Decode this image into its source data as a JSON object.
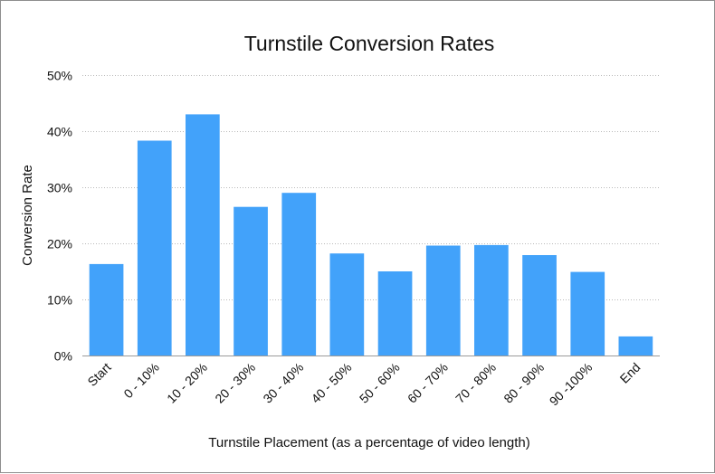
{
  "chart_data": {
    "type": "bar",
    "title": "Turnstile Conversion Rates",
    "xlabel": "Turnstile Placement (as a percentage of video length)",
    "ylabel": "Conversion Rate",
    "categories": [
      "Start",
      "0 - 10%",
      "10 - 20%",
      "20 - 30%",
      "30 - 40%",
      "40 - 50%",
      "50 - 60%",
      "60 - 70%",
      "70 - 80%",
      "80 - 90%",
      "90 -100%",
      "End"
    ],
    "values": [
      16.3,
      38.3,
      43.0,
      26.5,
      29.0,
      18.2,
      15.0,
      19.6,
      19.7,
      17.9,
      14.9,
      3.4
    ],
    "ylim": [
      0,
      50
    ],
    "yticks": [
      0,
      10,
      20,
      30,
      40,
      50
    ],
    "ytick_labels": [
      "0%",
      "10%",
      "20%",
      "30%",
      "40%",
      "50%"
    ],
    "grid": true,
    "bar_color": "#42a2fa"
  }
}
